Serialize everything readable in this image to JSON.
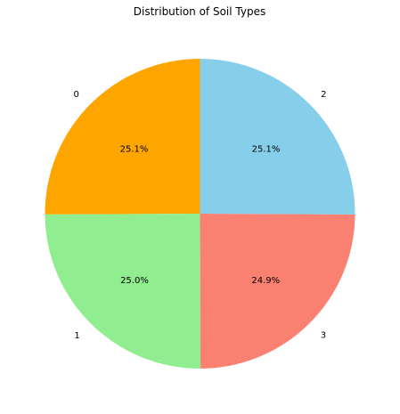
{
  "chart_data": {
    "type": "pie",
    "title": "Distribution of Soil Types",
    "slices": [
      {
        "label": "0",
        "value": 25.1,
        "pct_label": "25.1%",
        "color": "#ffa500"
      },
      {
        "label": "1",
        "value": 25.0,
        "pct_label": "25.0%",
        "color": "#90ee90"
      },
      {
        "label": "3",
        "value": 24.9,
        "pct_label": "24.9%",
        "color": "#fa8072"
      },
      {
        "label": "2",
        "value": 25.1,
        "pct_label": "25.1%",
        "color": "#87ceeb"
      }
    ],
    "start_angle_deg": 90,
    "direction": "counterclockwise",
    "legend": "none"
  }
}
